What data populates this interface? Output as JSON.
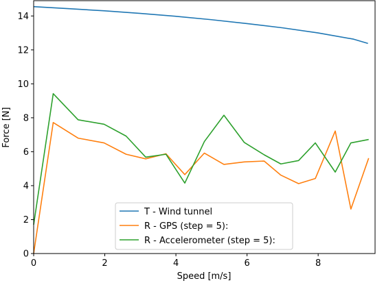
{
  "chart_data": {
    "type": "line",
    "title": "",
    "xlabel": "Speed [m/s]",
    "ylabel": "Force [N]",
    "xlim": [
      0,
      9.6
    ],
    "ylim": [
      0,
      14.9
    ],
    "x_ticks": [
      0,
      2,
      4,
      6,
      8
    ],
    "y_ticks": [
      0,
      2,
      4,
      6,
      8,
      10,
      12,
      14
    ],
    "grid": false,
    "legend_position": "lower-center",
    "series": [
      {
        "name": "T - Wind tunnel",
        "color": "#1f77b4",
        "x": [
          0,
          1,
          2,
          3,
          4,
          5,
          6,
          7,
          8,
          9,
          9.4
        ],
        "y": [
          14.55,
          14.43,
          14.3,
          14.15,
          13.98,
          13.78,
          13.55,
          13.3,
          13.0,
          12.63,
          12.38
        ]
      },
      {
        "name": "R - GPS (step = 5):",
        "color": "#ff7f0e",
        "x": [
          0,
          0.55,
          1.25,
          1.98,
          2.6,
          3.15,
          3.72,
          4.25,
          4.8,
          5.35,
          5.92,
          6.48,
          6.95,
          7.45,
          7.92,
          8.48,
          8.92,
          9.42
        ],
        "y": [
          0,
          7.72,
          6.8,
          6.52,
          5.85,
          5.58,
          5.88,
          4.65,
          5.92,
          5.25,
          5.4,
          5.45,
          4.62,
          4.12,
          4.42,
          7.22,
          2.62,
          5.62
        ]
      },
      {
        "name": "R - Accelerometer (step = 5):",
        "color": "#2ca02c",
        "x": [
          0,
          0.55,
          1.25,
          1.98,
          2.6,
          3.15,
          3.72,
          4.25,
          4.8,
          5.35,
          5.92,
          6.48,
          6.95,
          7.45,
          7.92,
          8.48,
          8.92,
          9.42
        ],
        "y": [
          1.7,
          9.42,
          7.88,
          7.62,
          6.92,
          5.68,
          5.85,
          4.15,
          6.6,
          8.15,
          6.55,
          5.82,
          5.28,
          5.48,
          6.52,
          4.8,
          6.52,
          6.72
        ]
      }
    ]
  }
}
